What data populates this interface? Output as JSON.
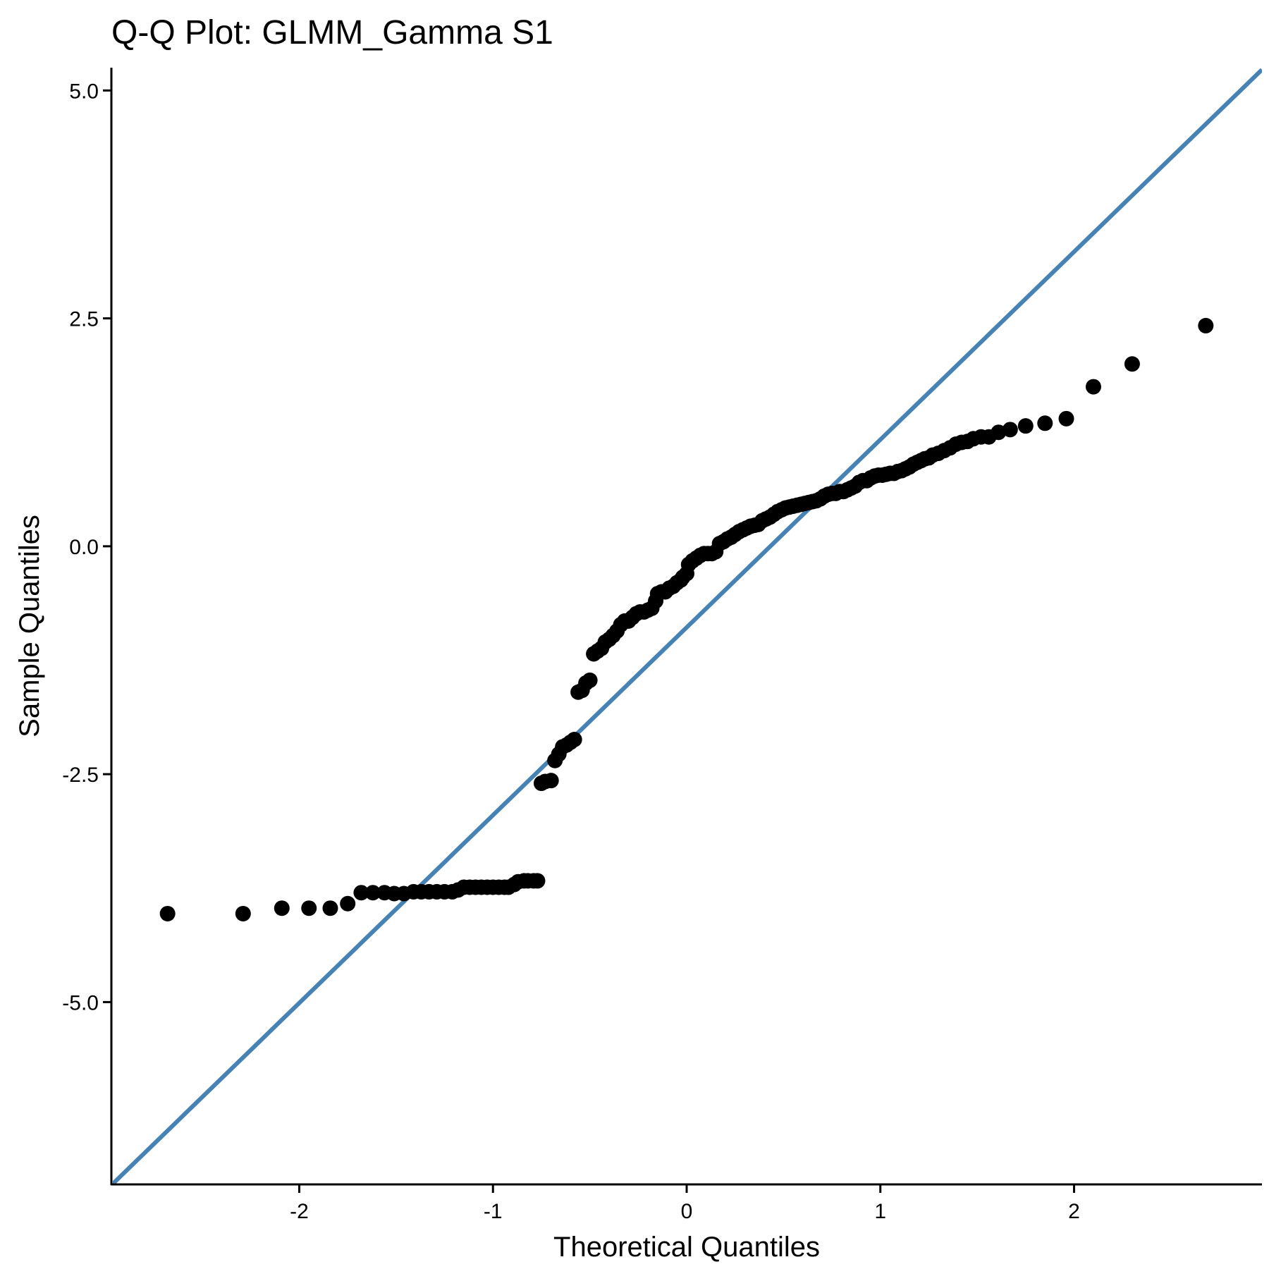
{
  "chart_data": {
    "type": "scatter",
    "title": "Q-Q Plot: GLMM_Gamma S1",
    "xlabel": "Theoretical Quantiles",
    "ylabel": "Sample Quantiles",
    "xlim": [
      -2.97,
      2.97
    ],
    "ylim": [
      -7.0,
      5.25
    ],
    "x_ticks": [
      -2,
      -1,
      0,
      1,
      2
    ],
    "x_tick_labels": [
      "-2",
      "-1",
      "0",
      "1",
      "2"
    ],
    "y_ticks": [
      -5.0,
      -2.5,
      0.0,
      2.5,
      5.0
    ],
    "y_tick_labels": [
      "-5.0",
      "-2.5",
      "0.0",
      "2.5",
      "5.0"
    ],
    "grid": false,
    "reference_line": {
      "slope": 2.06,
      "intercept": -0.89,
      "color": "#4682B4"
    },
    "point_color": "#000000",
    "points": [
      [
        -2.68,
        -4.03
      ],
      [
        -2.29,
        -4.03
      ],
      [
        -2.09,
        -3.97
      ],
      [
        -1.95,
        -3.97
      ],
      [
        -1.84,
        -3.97
      ],
      [
        -1.75,
        -3.92
      ],
      [
        -1.68,
        -3.8
      ],
      [
        -1.62,
        -3.8
      ],
      [
        -1.56,
        -3.8
      ],
      [
        -1.51,
        -3.81
      ],
      [
        -1.46,
        -3.81
      ],
      [
        -1.41,
        -3.79
      ],
      [
        -1.37,
        -3.79
      ],
      [
        -1.33,
        -3.79
      ],
      [
        -1.29,
        -3.79
      ],
      [
        -1.25,
        -3.79
      ],
      [
        -1.21,
        -3.79
      ],
      [
        -1.18,
        -3.77
      ],
      [
        -1.15,
        -3.74
      ],
      [
        -1.12,
        -3.74
      ],
      [
        -1.09,
        -3.74
      ],
      [
        -1.06,
        -3.74
      ],
      [
        -1.03,
        -3.74
      ],
      [
        -1.0,
        -3.74
      ],
      [
        -0.97,
        -3.74
      ],
      [
        -0.94,
        -3.74
      ],
      [
        -0.92,
        -3.74
      ],
      [
        -0.89,
        -3.71
      ],
      [
        -0.87,
        -3.68
      ],
      [
        -0.84,
        -3.67
      ],
      [
        -0.82,
        -3.67
      ],
      [
        -0.79,
        -3.67
      ],
      [
        -0.77,
        -3.67
      ],
      [
        -0.75,
        -2.6
      ],
      [
        -0.73,
        -2.58
      ],
      [
        -0.7,
        -2.57
      ],
      [
        -0.68,
        -2.35
      ],
      [
        -0.66,
        -2.28
      ],
      [
        -0.64,
        -2.2
      ],
      [
        -0.62,
        -2.18
      ],
      [
        -0.6,
        -2.15
      ],
      [
        -0.58,
        -2.12
      ],
      [
        -0.56,
        -1.6
      ],
      [
        -0.54,
        -1.58
      ],
      [
        -0.52,
        -1.5
      ],
      [
        -0.5,
        -1.47
      ],
      [
        -0.48,
        -1.18
      ],
      [
        -0.46,
        -1.15
      ],
      [
        -0.44,
        -1.12
      ],
      [
        -0.42,
        -1.05
      ],
      [
        -0.4,
        -1.02
      ],
      [
        -0.38,
        -0.98
      ],
      [
        -0.36,
        -0.93
      ],
      [
        -0.34,
        -0.86
      ],
      [
        -0.32,
        -0.82
      ],
      [
        -0.3,
        -0.82
      ],
      [
        -0.28,
        -0.78
      ],
      [
        -0.26,
        -0.74
      ],
      [
        -0.24,
        -0.72
      ],
      [
        -0.22,
        -0.72
      ],
      [
        -0.2,
        -0.7
      ],
      [
        -0.18,
        -0.68
      ],
      [
        -0.16,
        -0.6
      ],
      [
        -0.15,
        -0.52
      ],
      [
        -0.13,
        -0.5
      ],
      [
        -0.11,
        -0.5
      ],
      [
        -0.09,
        -0.46
      ],
      [
        -0.07,
        -0.44
      ],
      [
        -0.05,
        -0.4
      ],
      [
        -0.03,
        -0.37
      ],
      [
        -0.02,
        -0.34
      ],
      [
        0.0,
        -0.3
      ],
      [
        0.01,
        -0.2
      ],
      [
        0.03,
        -0.16
      ],
      [
        0.05,
        -0.13
      ],
      [
        0.07,
        -0.1
      ],
      [
        0.09,
        -0.08
      ],
      [
        0.11,
        -0.08
      ],
      [
        0.13,
        -0.08
      ],
      [
        0.15,
        -0.06
      ],
      [
        0.17,
        0.03
      ],
      [
        0.19,
        0.05
      ],
      [
        0.21,
        0.08
      ],
      [
        0.23,
        0.1
      ],
      [
        0.25,
        0.13
      ],
      [
        0.27,
        0.16
      ],
      [
        0.29,
        0.18
      ],
      [
        0.31,
        0.2
      ],
      [
        0.33,
        0.22
      ],
      [
        0.35,
        0.23
      ],
      [
        0.37,
        0.24
      ],
      [
        0.39,
        0.28
      ],
      [
        0.41,
        0.3
      ],
      [
        0.43,
        0.32
      ],
      [
        0.45,
        0.35
      ],
      [
        0.47,
        0.38
      ],
      [
        0.49,
        0.4
      ],
      [
        0.51,
        0.42
      ],
      [
        0.53,
        0.43
      ],
      [
        0.55,
        0.44
      ],
      [
        0.57,
        0.45
      ],
      [
        0.59,
        0.46
      ],
      [
        0.61,
        0.47
      ],
      [
        0.63,
        0.48
      ],
      [
        0.65,
        0.49
      ],
      [
        0.67,
        0.5
      ],
      [
        0.69,
        0.52
      ],
      [
        0.71,
        0.55
      ],
      [
        0.73,
        0.57
      ],
      [
        0.75,
        0.58
      ],
      [
        0.77,
        0.58
      ],
      [
        0.79,
        0.6
      ],
      [
        0.81,
        0.6
      ],
      [
        0.83,
        0.62
      ],
      [
        0.85,
        0.64
      ],
      [
        0.87,
        0.66
      ],
      [
        0.89,
        0.7
      ],
      [
        0.91,
        0.72
      ],
      [
        0.93,
        0.72
      ],
      [
        0.95,
        0.75
      ],
      [
        0.97,
        0.77
      ],
      [
        0.99,
        0.78
      ],
      [
        1.01,
        0.78
      ],
      [
        1.03,
        0.79
      ],
      [
        1.05,
        0.8
      ],
      [
        1.07,
        0.8
      ],
      [
        1.09,
        0.82
      ],
      [
        1.11,
        0.83
      ],
      [
        1.13,
        0.85
      ],
      [
        1.15,
        0.87
      ],
      [
        1.17,
        0.9
      ],
      [
        1.19,
        0.92
      ],
      [
        1.21,
        0.94
      ],
      [
        1.23,
        0.96
      ],
      [
        1.25,
        0.97
      ],
      [
        1.27,
        1.0
      ],
      [
        1.3,
        1.02
      ],
      [
        1.33,
        1.05
      ],
      [
        1.36,
        1.08
      ],
      [
        1.39,
        1.12
      ],
      [
        1.42,
        1.14
      ],
      [
        1.45,
        1.15
      ],
      [
        1.48,
        1.18
      ],
      [
        1.52,
        1.2
      ],
      [
        1.56,
        1.2
      ],
      [
        1.61,
        1.25
      ],
      [
        1.67,
        1.28
      ],
      [
        1.75,
        1.32
      ],
      [
        1.85,
        1.35
      ],
      [
        1.96,
        1.4
      ],
      [
        2.1,
        1.75
      ],
      [
        2.3,
        2.0
      ],
      [
        2.68,
        2.42
      ]
    ]
  }
}
